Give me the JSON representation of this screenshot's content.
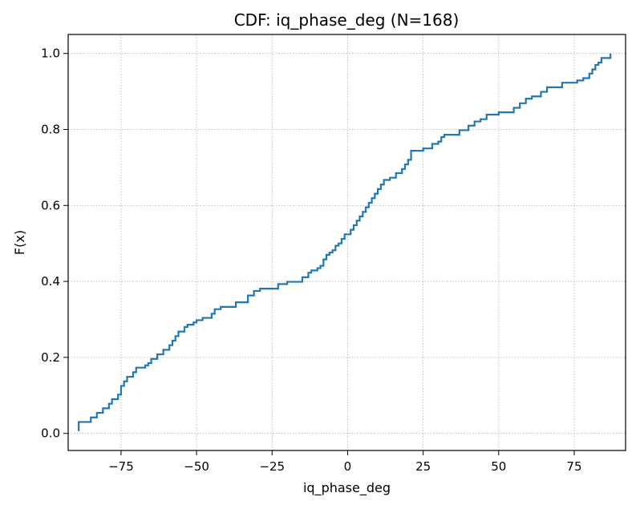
{
  "chart_data": {
    "type": "line",
    "title": "CDF: iq_phase_deg  (N=168)",
    "xlabel": "iq_phase_deg",
    "ylabel": "F(x)",
    "xlim": [
      -92.5,
      92
    ],
    "ylim": [
      -0.045,
      1.05
    ],
    "xticks": [
      -75,
      -50,
      -25,
      0,
      25,
      50,
      75
    ],
    "xtick_labels": [
      "−75",
      "−50",
      "−25",
      "0",
      "25",
      "50",
      "75"
    ],
    "yticks": [
      0.0,
      0.2,
      0.4,
      0.6,
      0.8,
      1.0
    ],
    "ytick_labels": [
      "0.0",
      "0.2",
      "0.4",
      "0.6",
      "0.8",
      "1.0"
    ],
    "grid": true,
    "series": [
      {
        "color": "#1f77b4",
        "step": true,
        "x": [
          -89,
          -89,
          -85,
          -83,
          -81,
          -79,
          -78,
          -76,
          -75,
          -74,
          -73,
          -71,
          -70,
          -67,
          -66,
          -65,
          -63,
          -61,
          -59,
          -58,
          -57,
          -56,
          -54,
          -53,
          -51,
          -50,
          -48,
          -45,
          -44,
          -42,
          -37,
          -33,
          -31,
          -29,
          -23,
          -20,
          -15,
          -13,
          -12,
          -10,
          -9,
          -8,
          -7,
          -6,
          -5,
          -4,
          -3,
          -2,
          -1,
          1,
          2,
          3,
          4,
          5,
          6,
          7,
          8,
          9,
          10,
          11,
          12,
          14,
          16,
          18,
          19,
          20,
          21,
          25,
          28,
          30,
          31,
          32,
          37,
          40,
          42,
          44,
          46,
          50,
          55,
          57,
          59,
          61,
          64,
          66,
          71,
          76,
          78,
          80,
          81,
          82,
          83,
          84,
          87,
          87
        ],
        "y": [
          0.006,
          0.03,
          0.042,
          0.054,
          0.066,
          0.078,
          0.09,
          0.102,
          0.125,
          0.137,
          0.149,
          0.161,
          0.173,
          0.179,
          0.185,
          0.196,
          0.208,
          0.22,
          0.232,
          0.244,
          0.256,
          0.268,
          0.28,
          0.286,
          0.292,
          0.298,
          0.304,
          0.315,
          0.327,
          0.333,
          0.345,
          0.363,
          0.375,
          0.381,
          0.393,
          0.399,
          0.411,
          0.423,
          0.429,
          0.435,
          0.441,
          0.458,
          0.47,
          0.476,
          0.482,
          0.494,
          0.5,
          0.512,
          0.524,
          0.536,
          0.548,
          0.56,
          0.571,
          0.583,
          0.595,
          0.607,
          0.619,
          0.631,
          0.643,
          0.655,
          0.667,
          0.673,
          0.685,
          0.696,
          0.708,
          0.72,
          0.744,
          0.75,
          0.762,
          0.768,
          0.78,
          0.786,
          0.798,
          0.81,
          0.821,
          0.827,
          0.839,
          0.845,
          0.857,
          0.869,
          0.881,
          0.887,
          0.899,
          0.911,
          0.923,
          0.929,
          0.935,
          0.947,
          0.958,
          0.97,
          0.976,
          0.988,
          0.994,
          1.0
        ]
      }
    ]
  }
}
